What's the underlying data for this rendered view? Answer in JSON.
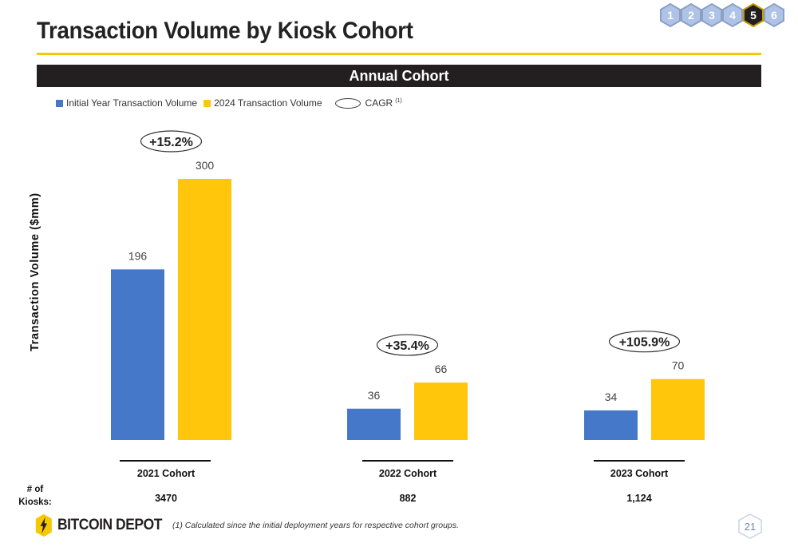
{
  "title": "Transaction Volume by Kiosk Cohort",
  "section_header": "Annual Cohort",
  "nav": {
    "items": [
      "1",
      "2",
      "3",
      "4",
      "5",
      "6"
    ],
    "active_index": 4
  },
  "legend": {
    "initial_label": "Initial Year Transaction Volume",
    "current_label": "2024 Transaction Volume",
    "cagr_label": "CAGR",
    "cagr_note": "(1)"
  },
  "colors": {
    "initial": "#4678CA",
    "current": "#FFC60B",
    "brand_yellow": "#F5C800",
    "header_dark": "#231F20"
  },
  "chart_data": {
    "type": "bar",
    "ylabel": "Transaction Volume ($mm)",
    "categories": [
      "2021 Cohort",
      "2022 Cohort",
      "2023 Cohort"
    ],
    "series": [
      {
        "name": "Initial Year Transaction Volume",
        "values": [
          196,
          36,
          34
        ]
      },
      {
        "name": "2024 Transaction Volume",
        "values": [
          300,
          66,
          70
        ]
      }
    ],
    "value_labels": {
      "initial": [
        "196",
        "36",
        "34"
      ],
      "current": [
        "300",
        "66",
        "70"
      ]
    },
    "cagr": [
      "+15.2%",
      "+35.4%",
      "+105.9%"
    ],
    "ylim": [
      0,
      300
    ],
    "grid": false
  },
  "kiosks": {
    "label_line1": "# of",
    "label_line2": "Kiosks:",
    "values": [
      "3470",
      "882",
      "1,124"
    ]
  },
  "footer": {
    "brand": "BITCOIN DEPOT",
    "footnote": "(1)  Calculated since the initial deployment years for respective cohort groups.",
    "page_number": "21"
  }
}
